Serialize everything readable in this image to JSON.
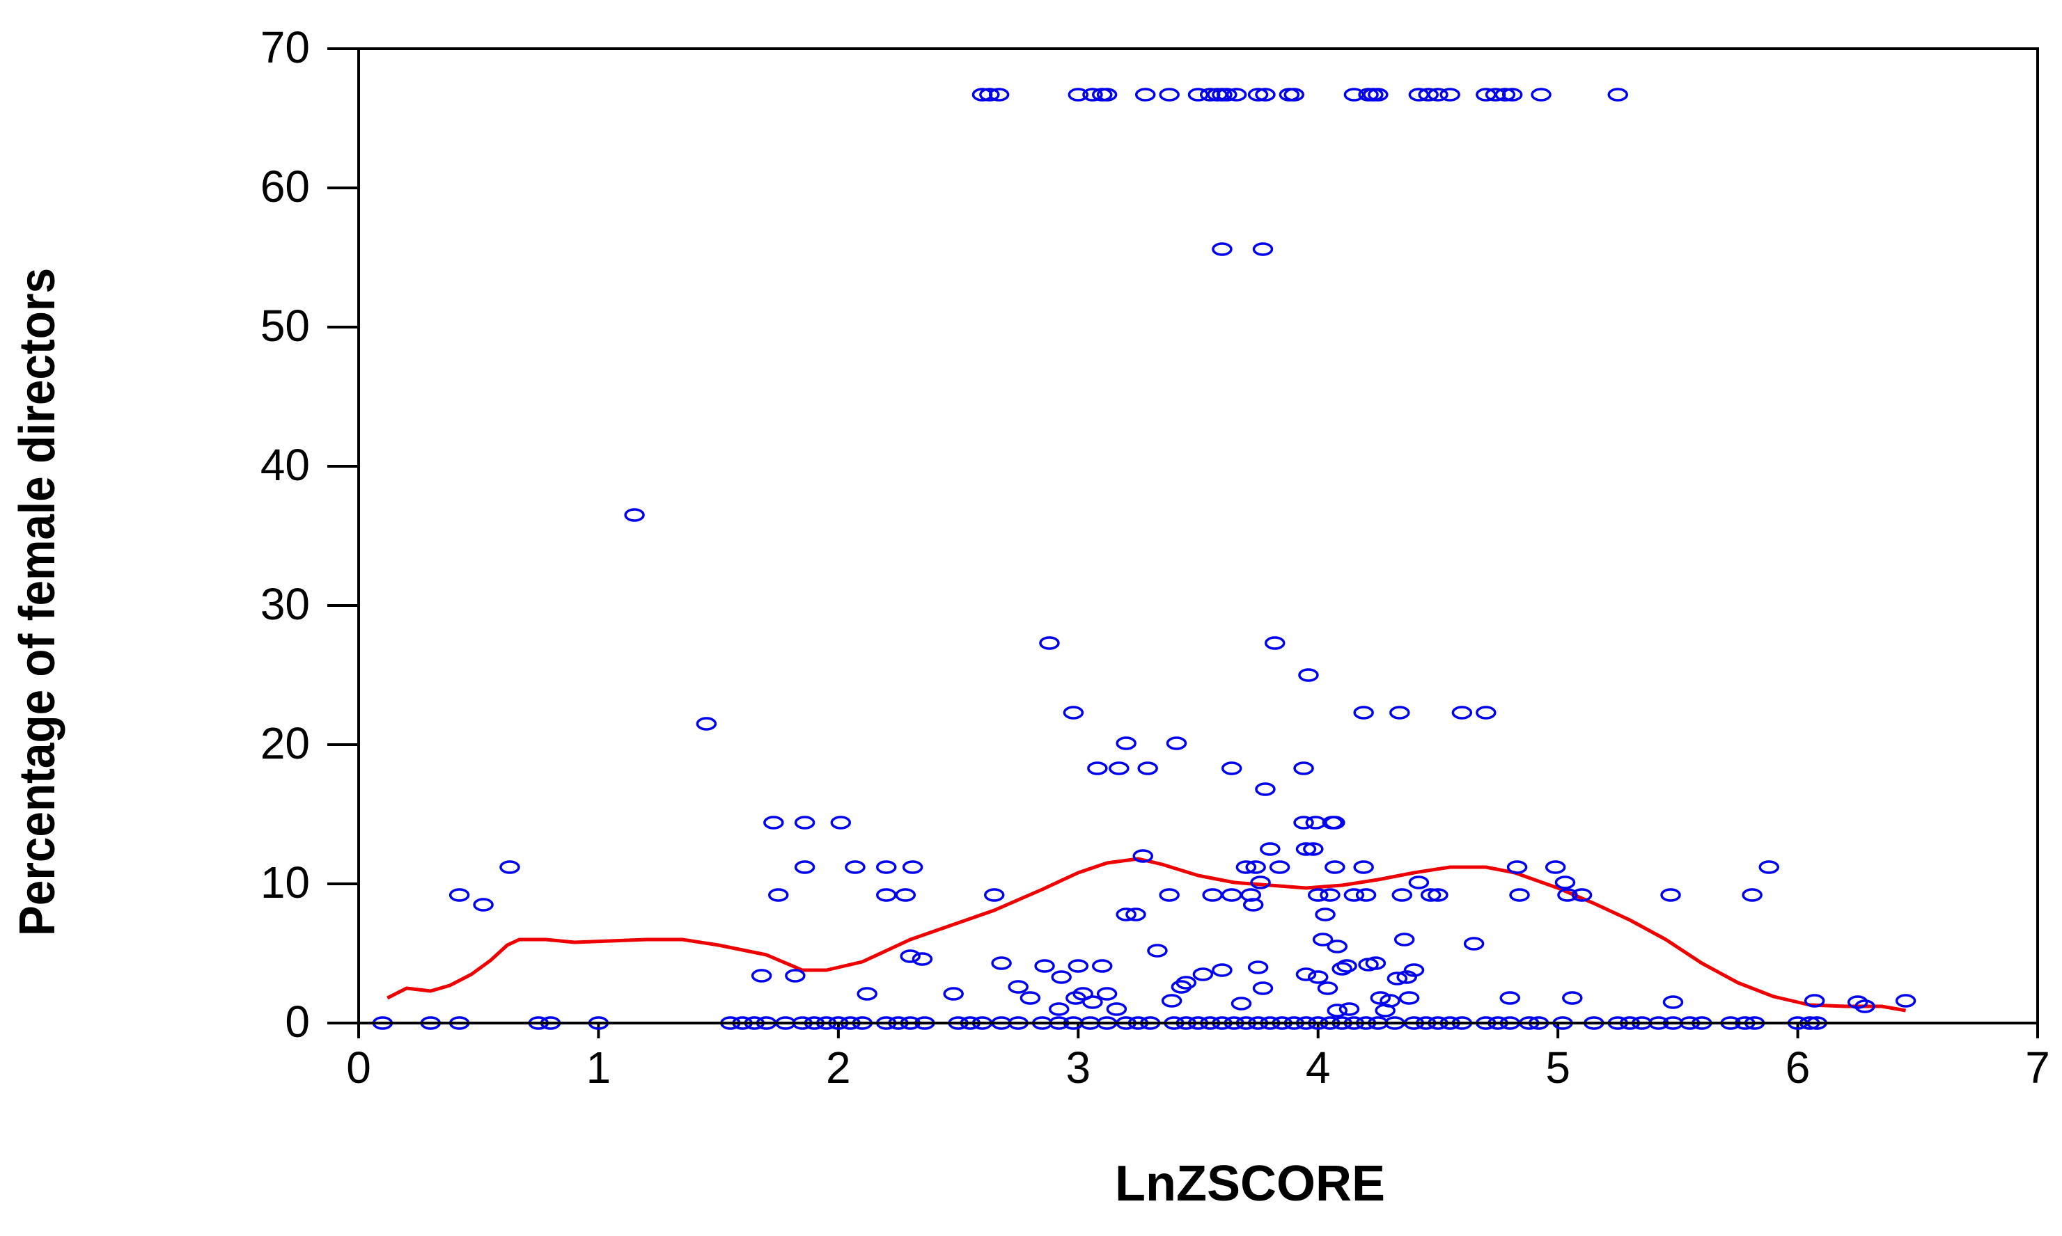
{
  "chart_data": {
    "type": "scatter",
    "title": "",
    "xlabel": "LnZSCORE",
    "ylabel": "Percentage of female directors",
    "xlim": [
      0,
      7
    ],
    "ylim": [
      0,
      70
    ],
    "xticks": [
      "0",
      "1",
      "2",
      "3",
      "4",
      "5",
      "6",
      "7"
    ],
    "yticks": [
      "0",
      "10",
      "20",
      "30",
      "40",
      "50",
      "60",
      "70"
    ],
    "grid": false,
    "colors": {
      "points": "#0000ee",
      "fit_line": "#ee0000"
    },
    "series": [
      {
        "type": "scatter",
        "marker": "open-circle",
        "points": [
          [
            0.1,
            0
          ],
          [
            0.3,
            0
          ],
          [
            0.42,
            0
          ],
          [
            0.75,
            0
          ],
          [
            0.8,
            0
          ],
          [
            1.0,
            0
          ],
          [
            1.55,
            0
          ],
          [
            1.6,
            0
          ],
          [
            1.65,
            0
          ],
          [
            1.7,
            0
          ],
          [
            1.78,
            0
          ],
          [
            1.85,
            0
          ],
          [
            1.9,
            0
          ],
          [
            1.95,
            0
          ],
          [
            2.0,
            0
          ],
          [
            2.05,
            0
          ],
          [
            2.1,
            0
          ],
          [
            2.2,
            0
          ],
          [
            2.25,
            0
          ],
          [
            2.3,
            0
          ],
          [
            2.36,
            0
          ],
          [
            2.5,
            0
          ],
          [
            2.55,
            0
          ],
          [
            2.6,
            0
          ],
          [
            2.68,
            0
          ],
          [
            2.75,
            0
          ],
          [
            2.85,
            0
          ],
          [
            2.92,
            0
          ],
          [
            2.98,
            0
          ],
          [
            3.05,
            0
          ],
          [
            3.12,
            0
          ],
          [
            3.2,
            0
          ],
          [
            3.25,
            0
          ],
          [
            3.3,
            0
          ],
          [
            3.4,
            0
          ],
          [
            3.45,
            0
          ],
          [
            3.5,
            0
          ],
          [
            3.55,
            0
          ],
          [
            3.6,
            0
          ],
          [
            3.65,
            0
          ],
          [
            3.7,
            0
          ],
          [
            3.75,
            0
          ],
          [
            3.8,
            0
          ],
          [
            3.85,
            0
          ],
          [
            3.9,
            0
          ],
          [
            3.95,
            0
          ],
          [
            4.0,
            0
          ],
          [
            4.05,
            0
          ],
          [
            4.1,
            0
          ],
          [
            4.15,
            0
          ],
          [
            4.2,
            0
          ],
          [
            4.25,
            0
          ],
          [
            4.32,
            0
          ],
          [
            4.4,
            0
          ],
          [
            4.45,
            0
          ],
          [
            4.5,
            0
          ],
          [
            4.55,
            0
          ],
          [
            4.6,
            0
          ],
          [
            4.7,
            0
          ],
          [
            4.75,
            0
          ],
          [
            4.8,
            0
          ],
          [
            4.88,
            0
          ],
          [
            4.92,
            0
          ],
          [
            5.02,
            0
          ],
          [
            5.15,
            0
          ],
          [
            5.25,
            0
          ],
          [
            5.3,
            0
          ],
          [
            5.35,
            0
          ],
          [
            5.42,
            0
          ],
          [
            5.48,
            0
          ],
          [
            5.55,
            0
          ],
          [
            5.6,
            0
          ],
          [
            5.72,
            0
          ],
          [
            5.78,
            0
          ],
          [
            5.82,
            0
          ],
          [
            6.0,
            0
          ],
          [
            6.05,
            0
          ],
          [
            6.08,
            0
          ],
          [
            0.42,
            9.2
          ],
          [
            0.52,
            8.5
          ],
          [
            0.63,
            11.2
          ],
          [
            1.15,
            36.5
          ],
          [
            1.45,
            21.5
          ],
          [
            1.68,
            3.4
          ],
          [
            1.73,
            14.4
          ],
          [
            1.75,
            9.2
          ],
          [
            1.82,
            3.4
          ],
          [
            1.86,
            14.4
          ],
          [
            1.86,
            11.2
          ],
          [
            2.01,
            14.4
          ],
          [
            2.07,
            11.2
          ],
          [
            2.12,
            2.1
          ],
          [
            2.2,
            11.2
          ],
          [
            2.2,
            9.2
          ],
          [
            2.28,
            9.2
          ],
          [
            2.3,
            4.8
          ],
          [
            2.31,
            11.2
          ],
          [
            2.35,
            4.6
          ],
          [
            2.48,
            2.1
          ],
          [
            2.6,
            66.7
          ],
          [
            2.63,
            66.7
          ],
          [
            2.65,
            9.2
          ],
          [
            2.67,
            66.7
          ],
          [
            2.68,
            4.3
          ],
          [
            2.75,
            2.6
          ],
          [
            2.8,
            1.8
          ],
          [
            2.86,
            4.1
          ],
          [
            2.88,
            27.3
          ],
          [
            2.92,
            1.0
          ],
          [
            2.93,
            3.3
          ],
          [
            2.98,
            22.3
          ],
          [
            2.99,
            1.8
          ],
          [
            3.0,
            66.7
          ],
          [
            3.0,
            4.1
          ],
          [
            3.02,
            2.1
          ],
          [
            3.06,
            66.7
          ],
          [
            3.06,
            1.5
          ],
          [
            3.08,
            18.3
          ],
          [
            3.1,
            66.7
          ],
          [
            3.1,
            4.1
          ],
          [
            3.12,
            66.7
          ],
          [
            3.12,
            2.1
          ],
          [
            3.16,
            1.0
          ],
          [
            3.17,
            18.3
          ],
          [
            3.2,
            20.1
          ],
          [
            3.2,
            7.8
          ],
          [
            3.24,
            7.8
          ],
          [
            3.27,
            12.0
          ],
          [
            3.28,
            66.7
          ],
          [
            3.29,
            18.3
          ],
          [
            3.33,
            5.2
          ],
          [
            3.38,
            66.7
          ],
          [
            3.38,
            9.2
          ],
          [
            3.39,
            1.6
          ],
          [
            3.41,
            20.1
          ],
          [
            3.43,
            2.6
          ],
          [
            3.45,
            2.9
          ],
          [
            3.5,
            66.7
          ],
          [
            3.52,
            3.5
          ],
          [
            3.55,
            66.7
          ],
          [
            3.56,
            9.2
          ],
          [
            3.58,
            66.7
          ],
          [
            3.6,
            66.7
          ],
          [
            3.6,
            55.6
          ],
          [
            3.6,
            3.8
          ],
          [
            3.62,
            66.7
          ],
          [
            3.64,
            18.3
          ],
          [
            3.64,
            9.2
          ],
          [
            3.66,
            66.7
          ],
          [
            3.68,
            1.4
          ],
          [
            3.7,
            11.2
          ],
          [
            3.72,
            9.2
          ],
          [
            3.73,
            8.5
          ],
          [
            3.74,
            11.2
          ],
          [
            3.75,
            66.7
          ],
          [
            3.75,
            4.0
          ],
          [
            3.76,
            10.1
          ],
          [
            3.77,
            55.6
          ],
          [
            3.77,
            2.5
          ],
          [
            3.78,
            16.8
          ],
          [
            3.78,
            66.7
          ],
          [
            3.8,
            12.5
          ],
          [
            3.82,
            27.3
          ],
          [
            3.84,
            11.2
          ],
          [
            3.88,
            66.7
          ],
          [
            3.9,
            66.7
          ],
          [
            3.94,
            18.3
          ],
          [
            3.94,
            14.4
          ],
          [
            3.95,
            12.5
          ],
          [
            3.95,
            3.5
          ],
          [
            3.96,
            25.0
          ],
          [
            3.98,
            12.5
          ],
          [
            3.99,
            14.4
          ],
          [
            4.0,
            9.2
          ],
          [
            4.0,
            3.3
          ],
          [
            4.02,
            6.0
          ],
          [
            4.03,
            7.8
          ],
          [
            4.04,
            2.5
          ],
          [
            4.05,
            9.2
          ],
          [
            4.06,
            14.4
          ],
          [
            4.07,
            14.4
          ],
          [
            4.07,
            11.2
          ],
          [
            4.08,
            5.5
          ],
          [
            4.08,
            0.9
          ],
          [
            4.1,
            3.9
          ],
          [
            4.12,
            4.1
          ],
          [
            4.13,
            1.0
          ],
          [
            4.15,
            66.7
          ],
          [
            4.15,
            9.2
          ],
          [
            4.19,
            22.3
          ],
          [
            4.19,
            11.2
          ],
          [
            4.2,
            9.2
          ],
          [
            4.21,
            66.7
          ],
          [
            4.21,
            4.2
          ],
          [
            4.23,
            66.7
          ],
          [
            4.24,
            4.3
          ],
          [
            4.25,
            66.7
          ],
          [
            4.26,
            1.8
          ],
          [
            4.28,
            0.9
          ],
          [
            4.3,
            1.6
          ],
          [
            4.33,
            3.2
          ],
          [
            4.34,
            22.3
          ],
          [
            4.35,
            9.2
          ],
          [
            4.36,
            6.0
          ],
          [
            4.37,
            3.3
          ],
          [
            4.38,
            1.8
          ],
          [
            4.4,
            3.8
          ],
          [
            4.42,
            66.7
          ],
          [
            4.42,
            10.1
          ],
          [
            4.46,
            66.7
          ],
          [
            4.47,
            9.2
          ],
          [
            4.5,
            66.7
          ],
          [
            4.5,
            9.2
          ],
          [
            4.55,
            66.7
          ],
          [
            4.6,
            22.3
          ],
          [
            4.65,
            5.7
          ],
          [
            4.7,
            66.7
          ],
          [
            4.7,
            22.3
          ],
          [
            4.74,
            66.7
          ],
          [
            4.78,
            66.7
          ],
          [
            4.8,
            1.8
          ],
          [
            4.81,
            66.7
          ],
          [
            4.83,
            11.2
          ],
          [
            4.84,
            9.2
          ],
          [
            4.93,
            66.7
          ],
          [
            4.99,
            11.2
          ],
          [
            5.03,
            10.1
          ],
          [
            5.04,
            9.2
          ],
          [
            5.06,
            1.8
          ],
          [
            5.1,
            9.2
          ],
          [
            5.25,
            66.7
          ],
          [
            5.47,
            9.2
          ],
          [
            5.48,
            1.5
          ],
          [
            5.81,
            9.2
          ],
          [
            5.88,
            11.2
          ],
          [
            6.07,
            1.6
          ],
          [
            6.25,
            1.5
          ],
          [
            6.28,
            1.2
          ],
          [
            6.45,
            1.6
          ]
        ]
      },
      {
        "type": "line",
        "points": [
          [
            0.12,
            1.8
          ],
          [
            0.2,
            2.5
          ],
          [
            0.3,
            2.3
          ],
          [
            0.38,
            2.7
          ],
          [
            0.47,
            3.5
          ],
          [
            0.55,
            4.5
          ],
          [
            0.62,
            5.6
          ],
          [
            0.67,
            6.0
          ],
          [
            0.78,
            6.0
          ],
          [
            0.9,
            5.8
          ],
          [
            1.05,
            5.9
          ],
          [
            1.2,
            6.0
          ],
          [
            1.35,
            6.0
          ],
          [
            1.5,
            5.6
          ],
          [
            1.7,
            4.9
          ],
          [
            1.85,
            3.8
          ],
          [
            1.95,
            3.8
          ],
          [
            2.1,
            4.4
          ],
          [
            2.3,
            6.0
          ],
          [
            2.5,
            7.2
          ],
          [
            2.65,
            8.1
          ],
          [
            2.85,
            9.6
          ],
          [
            3.0,
            10.8
          ],
          [
            3.12,
            11.5
          ],
          [
            3.25,
            11.8
          ],
          [
            3.35,
            11.4
          ],
          [
            3.5,
            10.6
          ],
          [
            3.65,
            10.1
          ],
          [
            3.8,
            9.9
          ],
          [
            3.95,
            9.7
          ],
          [
            4.1,
            9.9
          ],
          [
            4.25,
            10.3
          ],
          [
            4.4,
            10.8
          ],
          [
            4.55,
            11.2
          ],
          [
            4.7,
            11.2
          ],
          [
            4.82,
            10.8
          ],
          [
            5.0,
            9.7
          ],
          [
            5.15,
            8.6
          ],
          [
            5.3,
            7.4
          ],
          [
            5.45,
            6.0
          ],
          [
            5.6,
            4.3
          ],
          [
            5.75,
            2.9
          ],
          [
            5.9,
            1.9
          ],
          [
            6.05,
            1.3
          ],
          [
            6.2,
            1.2
          ],
          [
            6.35,
            1.2
          ],
          [
            6.45,
            0.9
          ]
        ]
      }
    ]
  }
}
